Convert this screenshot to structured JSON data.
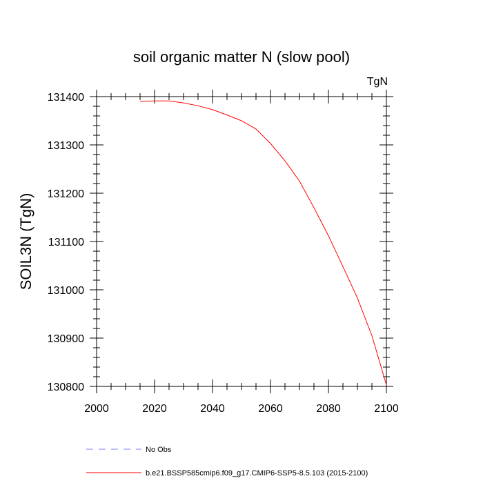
{
  "chart_data": {
    "type": "line",
    "title": "soil organic matter N (slow pool)",
    "units_label": "TgN",
    "xlabel": "",
    "ylabel": "SOIL3N  (TgN)",
    "xlim": [
      2000,
      2100
    ],
    "ylim": [
      130800,
      131400
    ],
    "x_ticks": [
      2000,
      2020,
      2040,
      2060,
      2080,
      2100
    ],
    "y_ticks": [
      130800,
      130900,
      131000,
      131100,
      131200,
      131300,
      131400
    ],
    "grid": false,
    "legend_position": "bottom",
    "legend": [
      {
        "label": "No Obs",
        "color": "#7f7fff",
        "style": "dashed"
      },
      {
        "label": "b.e21.BSSP585cmip6.f09_g17.CMIP6-SSP5-8.5.103 (2015-2100)",
        "color": "#ff0000",
        "style": "solid"
      }
    ],
    "series": [
      {
        "name": "b.e21.BSSP585cmip6.f09_g17.CMIP6-SSP5-8.5.103 (2015-2100)",
        "color": "#ff0000",
        "x": [
          2015,
          2020,
          2025,
          2030,
          2035,
          2040,
          2045,
          2050,
          2055,
          2060,
          2065,
          2070,
          2075,
          2080,
          2085,
          2090,
          2095,
          2100
        ],
        "y": [
          131390,
          131391,
          131391,
          131387,
          131381,
          131373,
          131362,
          131350,
          131333,
          131303,
          131267,
          131225,
          131170,
          131112,
          131048,
          130983,
          130905,
          130803
        ]
      }
    ]
  }
}
